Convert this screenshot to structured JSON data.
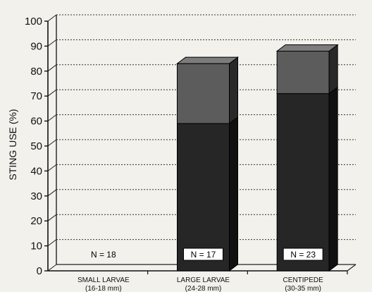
{
  "chart_data": {
    "type": "bar",
    "style": "3d-stacked",
    "ylabel": "STING USE (%)",
    "ylim": [
      0,
      100
    ],
    "yticks": [
      0,
      10,
      20,
      30,
      40,
      50,
      60,
      70,
      80,
      90,
      100
    ],
    "grid": true,
    "categories": [
      {
        "name": "SMALL LARVAE",
        "range": "(16-18 mm)",
        "n_label": "N = 18"
      },
      {
        "name": "LARGE LARVAE",
        "range": "(24-28 mm)",
        "n_label": "N = 17"
      },
      {
        "name": "CENTIPEDE",
        "range": "(30-35 mm)",
        "n_label": "N = 23"
      }
    ],
    "series": [
      {
        "values": [
          0,
          59,
          71
        ],
        "color": "#262626"
      },
      {
        "values": [
          0,
          24,
          17
        ],
        "color": "#5c5c5c"
      }
    ]
  }
}
